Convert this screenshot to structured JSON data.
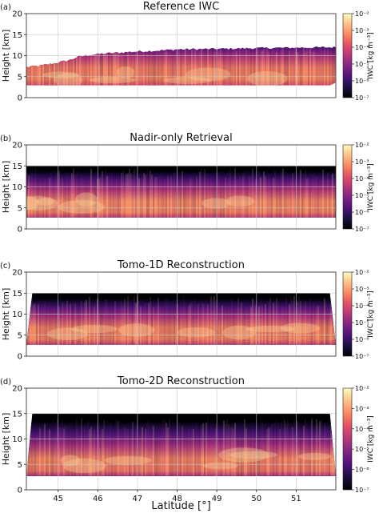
{
  "figure": {
    "xlabel": "Latitude [°]",
    "colorbar_label": "IWC [kg m⁻³]"
  },
  "chart_data": [
    {
      "type": "heatmap",
      "panel_label": "(a)",
      "title": "Reference IWC",
      "ylabel": "Height [km]",
      "xlim": [
        44.2,
        52.0
      ],
      "ylim": [
        0,
        20
      ],
      "yticks": [
        "0",
        "5",
        "10",
        "15",
        "20"
      ],
      "xticks": [],
      "grid": true,
      "cloud_base_km": 2.9,
      "cloud_top_profile": [
        [
          44.2,
          7.3
        ],
        [
          44.6,
          7.7
        ],
        [
          45.0,
          8.4
        ],
        [
          45.3,
          9.0
        ],
        [
          45.5,
          9.7
        ],
        [
          45.8,
          10.2
        ],
        [
          46.3,
          10.6
        ],
        [
          47.0,
          11.0
        ],
        [
          47.5,
          11.2
        ],
        [
          48.0,
          11.5
        ],
        [
          49.0,
          11.6
        ],
        [
          50.0,
          11.8
        ],
        [
          51.0,
          11.9
        ],
        [
          52.0,
          12.0
        ]
      ],
      "top_fill": "none",
      "colorbar": {
        "label": "IWC [kg m⁻³]",
        "scale": "log",
        "range": [
          1e-07,
          0.01
        ],
        "ticks": [
          "10⁻²",
          "10⁻³",
          "10⁻⁴",
          "10⁻⁵",
          "10⁻⁶",
          "10⁻⁷"
        ],
        "colormap": "magma"
      }
    },
    {
      "type": "heatmap",
      "panel_label": "(b)",
      "title": "Nadir-only Retrieval",
      "ylabel": "Height [km]",
      "xlim": [
        44.2,
        52.0
      ],
      "ylim": [
        0,
        20
      ],
      "yticks": [
        "0",
        "5",
        "10",
        "15",
        "20"
      ],
      "xticks": [],
      "grid": true,
      "domain": {
        "xmin": 44.2,
        "xmax": 52.0,
        "zmin": 2.7,
        "zmax": 15.0
      },
      "cloud_top_km": 12.5,
      "top_fill": "black",
      "colorbar": {
        "label": "IWC [kg m⁻³]",
        "scale": "log",
        "range": [
          1e-07,
          0.01
        ],
        "ticks": [
          "10⁻²",
          "10⁻³",
          "10⁻⁴",
          "10⁻⁵",
          "10⁻⁶",
          "10⁻⁷"
        ],
        "colormap": "magma"
      }
    },
    {
      "type": "heatmap",
      "panel_label": "(c)",
      "title": "Tomo-1D Reconstruction",
      "ylabel": "Height [km]",
      "xlim": [
        44.2,
        52.0
      ],
      "ylim": [
        0,
        20
      ],
      "yticks": [
        "0",
        "5",
        "10",
        "15",
        "20"
      ],
      "xticks": [],
      "grid": true,
      "domain": {
        "x_top_left": 44.35,
        "x_top_right": 51.85,
        "x_bottom_left": 44.2,
        "x_bottom_right": 52.0,
        "zmin": 2.7,
        "zmax": 15.0
      },
      "cloud_top_km": 12.4,
      "top_fill": "black",
      "colorbar": {
        "label": "IWC [kg m⁻³]",
        "scale": "log",
        "range": [
          1e-07,
          0.01
        ],
        "ticks": [
          "10⁻²",
          "10⁻³",
          "10⁻⁴",
          "10⁻⁵",
          "10⁻⁶",
          "10⁻⁷"
        ],
        "colormap": "magma"
      }
    },
    {
      "type": "heatmap",
      "panel_label": "(d)",
      "title": "Tomo-2D Reconstruction",
      "ylabel": "Height [km]",
      "xlim": [
        44.2,
        52.0
      ],
      "ylim": [
        0,
        20
      ],
      "yticks": [
        "0",
        "5",
        "10",
        "15",
        "20"
      ],
      "xticks": [
        "45",
        "46",
        "47",
        "48",
        "49",
        "50",
        "51"
      ],
      "grid": true,
      "domain": {
        "x_top_left": 44.35,
        "x_top_right": 51.85,
        "x_bottom_left": 44.2,
        "x_bottom_right": 52.0,
        "zmin": 2.7,
        "zmax": 15.0
      },
      "cloud_top_km": 12.2,
      "top_fill": "black",
      "colorbar": {
        "label": "IWC [kg m⁻³]",
        "scale": "log",
        "range": [
          1e-07,
          0.01
        ],
        "ticks": [
          "10⁻²",
          "10⁻³",
          "10⁻⁴",
          "10⁻⁵",
          "10⁻⁶",
          "10⁻⁷"
        ],
        "colormap": "magma"
      }
    }
  ]
}
